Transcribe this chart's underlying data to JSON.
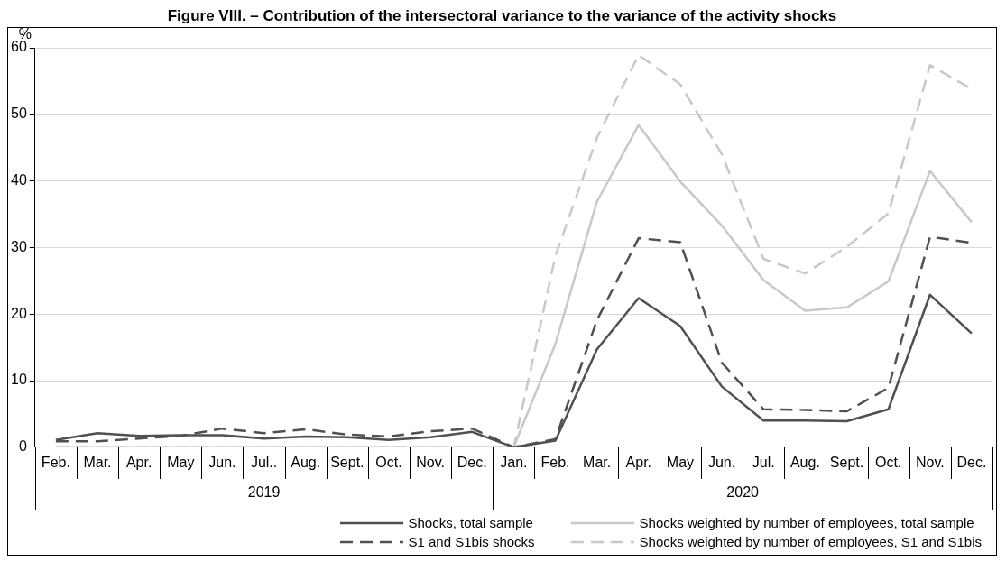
{
  "chart_data": {
    "type": "line",
    "title": "Figure VIII. – Contribution of the intersectoral variance to the variance of the activity shocks",
    "ylabel": "%",
    "categories": [
      "Feb.",
      "Mar.",
      "Apr.",
      "May",
      "Jun.",
      "Jul..",
      "Aug.",
      "Sept.",
      "Oct.",
      "Nov.",
      "Dec.",
      "Jan.",
      "Feb.",
      "Mar.",
      "Apr.",
      "May",
      "Jun.",
      "Jul.",
      "Aug.",
      "Sept.",
      "Oct.",
      "Nov.",
      "Dec."
    ],
    "series": [
      {
        "name": "Shocks, total sample",
        "color": "#505050",
        "line_style": "solid",
        "values": [
          1.1,
          2.1,
          1.7,
          1.8,
          1.8,
          1.3,
          1.6,
          1.5,
          1.1,
          1.5,
          2.3,
          0,
          1.0,
          14.7,
          22.4,
          18.2,
          9.1,
          4.0,
          4.0,
          3.9,
          5.7,
          22.9,
          17.1
        ]
      },
      {
        "name": "Shocks weighted by number of employees, total sample",
        "color": "#c8c8c8",
        "line_style": "solid",
        "values": [
          0,
          0,
          0,
          0,
          0,
          0,
          0,
          0,
          0,
          0,
          0,
          0,
          15.5,
          36.9,
          48.4,
          39.9,
          33.3,
          25.1,
          20.5,
          21.0,
          24.9,
          41.5,
          33.8
        ]
      },
      {
        "name": "S1 and S1bis shocks",
        "color": "#505050",
        "line_style": "dashed",
        "values": [
          0.9,
          0.9,
          1.3,
          1.7,
          2.8,
          2.1,
          2.7,
          1.9,
          1.6,
          2.4,
          2.8,
          0,
          1.2,
          19.1,
          31.4,
          30.8,
          12.7,
          5.7,
          5.6,
          5.4,
          8.9,
          31.6,
          30.7
        ]
      },
      {
        "name": "Shocks weighted by number of employees, S1 and S1bis",
        "color": "#c8c8c8",
        "line_style": "dashed",
        "values": [
          0,
          0,
          0,
          0,
          0,
          0,
          0,
          0,
          0,
          0,
          0,
          0,
          28.7,
          46.5,
          58.9,
          54.5,
          44.0,
          28.3,
          26.1,
          30.1,
          35.1,
          57.4,
          53.8
        ]
      }
    ],
    "annotations": [
      "2019",
      "2020"
    ],
    "ylim": [
      0,
      60
    ],
    "yticks": [
      0,
      10,
      20,
      30,
      40,
      50,
      60
    ],
    "grid": "y",
    "legend": "bottom",
    "marker": "none"
  }
}
